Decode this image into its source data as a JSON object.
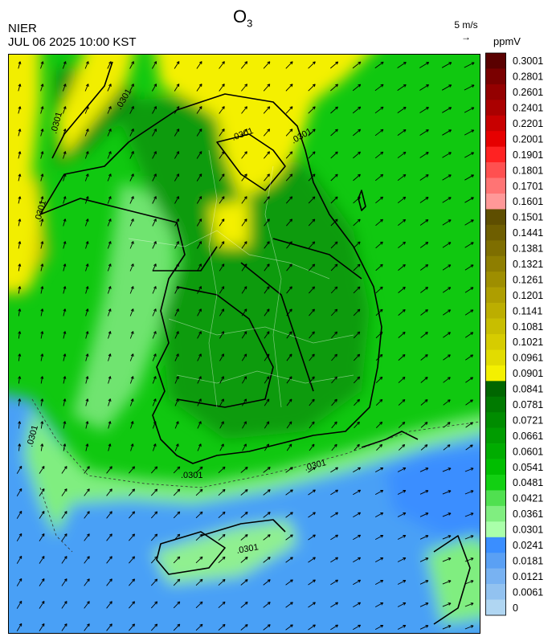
{
  "header": {
    "agency": "NIER",
    "datetime": "JUL 06 2025 10:00 KST",
    "pollutant_main": "O",
    "pollutant_sub": "3"
  },
  "wind_key": {
    "label": "5 m/s",
    "arrow": "→"
  },
  "legend": {
    "unit": "ppmV",
    "labels": [
      "0.3001",
      "0.2801",
      "0.2601",
      "0.2401",
      "0.2201",
      "0.2001",
      "0.1901",
      "0.1801",
      "0.1701",
      "0.1601",
      "0.1501",
      "0.1441",
      "0.1381",
      "0.1321",
      "0.1261",
      "0.1201",
      "0.1141",
      "0.1081",
      "0.1021",
      "0.0961",
      "0.0901",
      "0.0841",
      "0.0781",
      "0.0721",
      "0.0661",
      "0.0601",
      "0.0541",
      "0.0481",
      "0.0421",
      "0.0361",
      "0.0301",
      "0.0241",
      "0.0181",
      "0.0121",
      "0.0061",
      "0"
    ],
    "colors": [
      "#5a0000",
      "#7a0000",
      "#940000",
      "#aa0000",
      "#c80000",
      "#e60000",
      "#ff2222",
      "#ff5050",
      "#ff7474",
      "#ff9898",
      "#5e4e00",
      "#6e5e00",
      "#7e6e00",
      "#8e7e00",
      "#9e8e00",
      "#ae9e00",
      "#bcae00",
      "#c8be00",
      "#d6cc00",
      "#e2dc00",
      "#f4f000",
      "#006600",
      "#007a00",
      "#008c00",
      "#009c00",
      "#00ac00",
      "#00be00",
      "#12d012",
      "#50e050",
      "#80ee80",
      "#aaffaa",
      "#3a8eff",
      "#5aa0f4",
      "#78b2f2",
      "#92c2f0",
      "#b0d6f2"
    ]
  },
  "contour_labels": [
    ".0301",
    ".0301",
    ".0301",
    ".0301",
    ".0301",
    ".0301",
    ".0301",
    ".0301",
    ".0301"
  ]
}
